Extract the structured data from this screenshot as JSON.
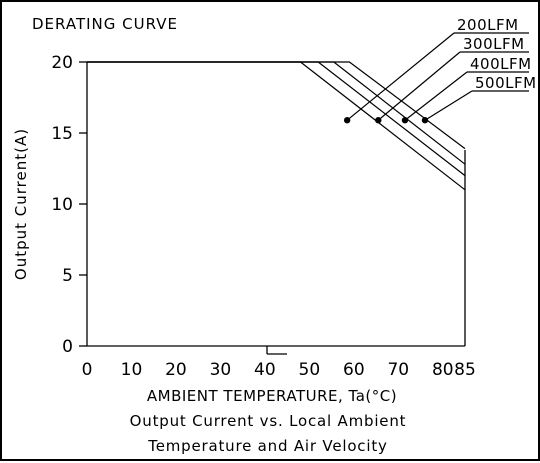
{
  "chart_data": {
    "type": "line",
    "title": "DERATING CURVE",
    "xlabel": "AMBIENT TEMPERATURE, Ta(°C)",
    "ylabel": "Output Current(A)",
    "caption_lines": [
      "Output Current vs. Local Ambient",
      "Temperature and Air Velocity"
    ],
    "xlim": [
      0,
      85
    ],
    "ylim": [
      0,
      20
    ],
    "x_ticks": [
      "0",
      "10",
      "20",
      "30",
      "40",
      "50",
      "60",
      "70",
      "80",
      "85"
    ],
    "y_ticks": [
      "0",
      "5",
      "10",
      "15",
      "20"
    ],
    "grid": false,
    "legend_placement": "top-right",
    "series": [
      {
        "name": "200LFM",
        "x": [
          0,
          48,
          85
        ],
        "y": [
          20,
          20,
          11
        ],
        "marker": [
          58.5,
          15.9
        ]
      },
      {
        "name": "300LFM",
        "x": [
          0,
          52,
          85
        ],
        "y": [
          20,
          20,
          12
        ],
        "marker": [
          65.5,
          15.9
        ]
      },
      {
        "name": "400LFM",
        "x": [
          0,
          55.5,
          85
        ],
        "y": [
          20,
          20,
          12.8
        ],
        "marker": [
          71.5,
          15.9
        ]
      },
      {
        "name": "500LFM",
        "x": [
          0,
          59,
          85
        ],
        "y": [
          20,
          20,
          13.9
        ],
        "marker": [
          76,
          15.9
        ]
      }
    ],
    "colors": {
      "line": "#000000",
      "background": "#ffffff"
    }
  }
}
